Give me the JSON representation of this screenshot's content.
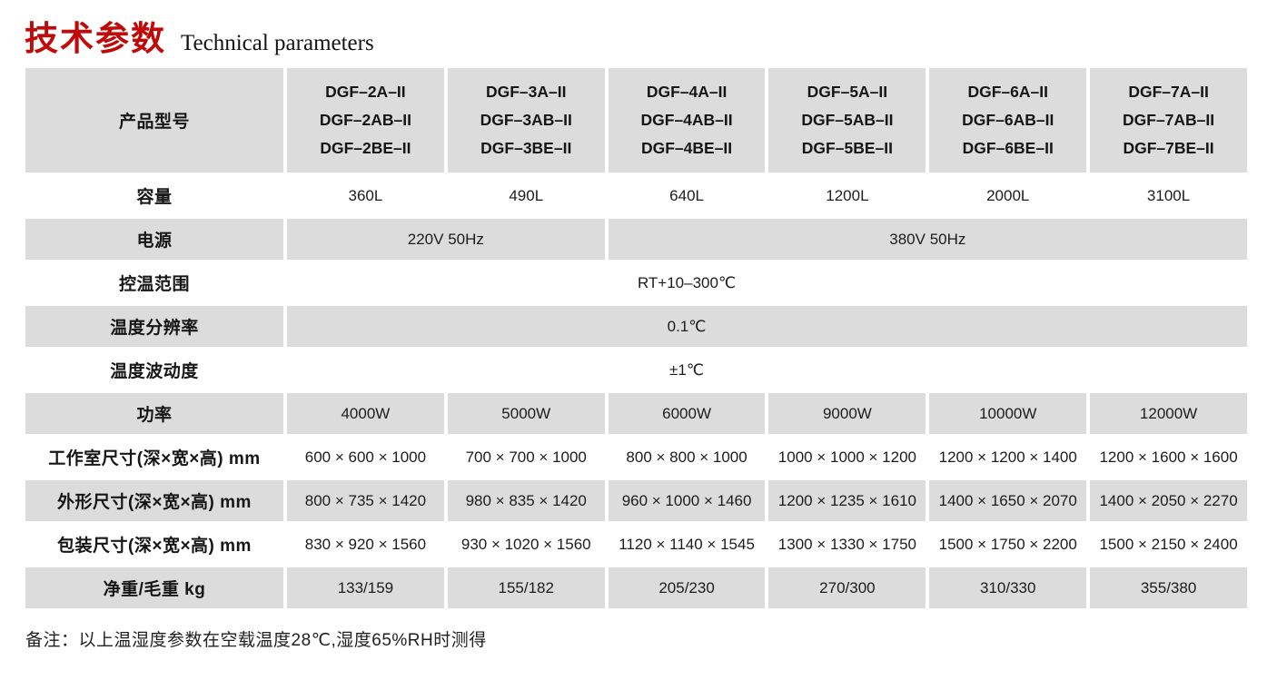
{
  "page": {
    "title_zh": "技术参数",
    "title_en": "Technical parameters",
    "note": "备注：以上温湿度参数在空载温度28℃,湿度65%RH时测得"
  },
  "colors": {
    "title_red": "#c00a0a",
    "row_gray": "#dcdcdc",
    "row_white": "#ffffff",
    "text": "#1c1c1c"
  },
  "table": {
    "header": {
      "label": "产品型号",
      "columns": [
        {
          "models": "DGF–2A–II\nDGF–2AB–II\nDGF–2BE–II"
        },
        {
          "models": "DGF–3A–II\nDGF–3AB–II\nDGF–3BE–II"
        },
        {
          "models": "DGF–4A–II\nDGF–4AB–II\nDGF–4BE–II"
        },
        {
          "models": "DGF–5A–II\nDGF–5AB–II\nDGF–5BE–II"
        },
        {
          "models": "DGF–6A–II\nDGF–6AB–II\nDGF–6BE–II"
        },
        {
          "models": "DGF–7A–II\nDGF–7AB–II\nDGF–7BE–II"
        }
      ]
    },
    "rows": {
      "capacity": {
        "label": "容量",
        "values": [
          "360L",
          "490L",
          "640L",
          "1200L",
          "2000L",
          "3100L"
        ]
      },
      "power_supply": {
        "label": "电源",
        "value_left": "220V 50Hz",
        "value_right": "380V 50Hz"
      },
      "temp_range": {
        "label": "控温范围",
        "value": "RT+10–300℃"
      },
      "temp_resolution": {
        "label": "温度分辨率",
        "value": "0.1℃"
      },
      "temp_fluctuation": {
        "label": "温度波动度",
        "value": "±1℃"
      },
      "power": {
        "label": "功率",
        "values": [
          "4000W",
          "5000W",
          "6000W",
          "9000W",
          "10000W",
          "12000W"
        ]
      },
      "chamber_size": {
        "label": "工作室尺寸(深×宽×高) mm",
        "values": [
          "600 × 600 × 1000",
          "700 × 700 × 1000",
          "800 × 800 × 1000",
          "1000 × 1000 × 1200",
          "1200 × 1200 × 1400",
          "1200 × 1600 × 1600"
        ]
      },
      "outer_size": {
        "label": "外形尺寸(深×宽×高) mm",
        "values": [
          "800 × 735 × 1420",
          "980 × 835 × 1420",
          "960 × 1000 × 1460",
          "1200 × 1235 × 1610",
          "1400 × 1650 × 2070",
          "1400 × 2050 × 2270"
        ]
      },
      "package_size": {
        "label": "包装尺寸(深×宽×高) mm",
        "values": [
          "830 × 920 × 1560",
          "930 × 1020 × 1560",
          "1120 × 1140 × 1545",
          "1300 × 1330 × 1750",
          "1500 × 1750 × 2200",
          "1500 × 2150 × 2400"
        ]
      },
      "weight": {
        "label": "净重/毛重 kg",
        "values": [
          "133/159",
          "155/182",
          "205/230",
          "270/300",
          "310/330",
          "355/380"
        ]
      }
    }
  }
}
